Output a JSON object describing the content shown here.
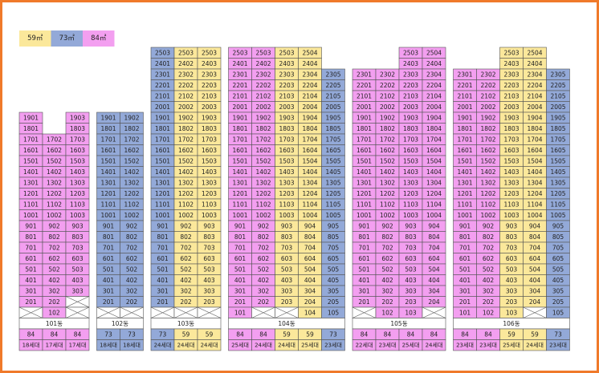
{
  "legend": [
    {
      "label": "59㎡",
      "color": "#fbe89b"
    },
    {
      "label": "73㎡",
      "color": "#93a9d8"
    },
    {
      "label": "84㎡",
      "color": "#f39ff0"
    }
  ],
  "buildings": [
    {
      "name": "101동",
      "lines": [
        {
          "type": "84",
          "color": "#f39ff0",
          "households": "18세대"
        },
        {
          "type": "84",
          "color": "#f39ff0",
          "households": "17세대"
        },
        {
          "type": "84",
          "color": "#f39ff0",
          "households": "17세대"
        }
      ],
      "rows": [
        [
          "1901",
          null,
          "1903"
        ],
        [
          "1801",
          null,
          "1803"
        ],
        [
          "1701",
          "1702",
          "1703"
        ],
        [
          "1601",
          "1602",
          "1603"
        ],
        [
          "1501",
          "1502",
          "1503"
        ],
        [
          "1401",
          "1402",
          "1403"
        ],
        [
          "1301",
          "1302",
          "1303"
        ],
        [
          "1201",
          "1202",
          "1203"
        ],
        [
          "1101",
          "1102",
          "1103"
        ],
        [
          "1001",
          "1002",
          "1003"
        ],
        [
          "901",
          "902",
          "903"
        ],
        [
          "801",
          "802",
          "803"
        ],
        [
          "701",
          "702",
          "703"
        ],
        [
          "601",
          "602",
          "603"
        ],
        [
          "501",
          "502",
          "503"
        ],
        [
          "401",
          "402",
          "403"
        ],
        [
          "301",
          "302",
          "303"
        ],
        [
          "201",
          "202",
          null
        ],
        [
          null,
          "102",
          null
        ]
      ]
    },
    {
      "name": "102동",
      "lines": [
        {
          "type": "73",
          "color": "#93a9d8",
          "households": "18세대"
        },
        {
          "type": "73",
          "color": "#93a9d8",
          "households": "18세대"
        }
      ],
      "rows": [
        [
          "1901",
          "1902"
        ],
        [
          "1801",
          "1802"
        ],
        [
          "1701",
          "1702"
        ],
        [
          "1601",
          "1602"
        ],
        [
          "1501",
          "1502"
        ],
        [
          "1401",
          "1402"
        ],
        [
          "1301",
          "1302"
        ],
        [
          "1201",
          "1202"
        ],
        [
          "1101",
          "1102"
        ],
        [
          "1001",
          "1002"
        ],
        [
          "901",
          "902"
        ],
        [
          "801",
          "802"
        ],
        [
          "701",
          "702"
        ],
        [
          "601",
          "602"
        ],
        [
          "501",
          "502"
        ],
        [
          "401",
          "402"
        ],
        [
          "301",
          "302"
        ],
        [
          "201",
          "202"
        ],
        [
          null,
          null
        ]
      ]
    },
    {
      "name": "103동",
      "lines": [
        {
          "type": "73",
          "color": "#93a9d8",
          "households": "24세대"
        },
        {
          "type": "59",
          "color": "#fbe89b",
          "households": "24세대"
        },
        {
          "type": "59",
          "color": "#fbe89b",
          "households": "24세대"
        }
      ],
      "rows": [
        [
          "2503",
          "2503",
          "2503"
        ],
        [
          "2401",
          "2402",
          "2403"
        ],
        [
          "2301",
          "2302",
          "2303"
        ],
        [
          "2201",
          "2202",
          "2203"
        ],
        [
          "2101",
          "2102",
          "2103"
        ],
        [
          "2001",
          "2002",
          "2003"
        ],
        [
          "1901",
          "1902",
          "1903"
        ],
        [
          "1801",
          "1802",
          "1803"
        ],
        [
          "1701",
          "1702",
          "1703"
        ],
        [
          "1601",
          "1602",
          "1603"
        ],
        [
          "1501",
          "1502",
          "1503"
        ],
        [
          "1401",
          "1402",
          "1403"
        ],
        [
          "1301",
          "1302",
          "1303"
        ],
        [
          "1201",
          "1202",
          "1203"
        ],
        [
          "1101",
          "1102",
          "1103"
        ],
        [
          "1001",
          "1002",
          "1003"
        ],
        [
          "901",
          "902",
          "903"
        ],
        [
          "801",
          "802",
          "803"
        ],
        [
          "701",
          "702",
          "703"
        ],
        [
          "601",
          "602",
          "603"
        ],
        [
          "501",
          "502",
          "503"
        ],
        [
          "401",
          "402",
          "403"
        ],
        [
          "301",
          "302",
          "303"
        ],
        [
          "201",
          "202",
          "203"
        ],
        [
          null,
          null,
          null
        ]
      ]
    },
    {
      "name": "104동",
      "lines": [
        {
          "type": "84",
          "color": "#f39ff0",
          "households": "25세대"
        },
        {
          "type": "84",
          "color": "#f39ff0",
          "households": "24세대"
        },
        {
          "type": "59",
          "color": "#fbe89b",
          "households": "24세대"
        },
        {
          "type": "59",
          "color": "#fbe89b",
          "households": "25세대"
        },
        {
          "type": "73",
          "color": "#93a9d8",
          "households": "23세대"
        }
      ],
      "rows": [
        [
          "2503",
          "2503",
          "2503",
          "2504",
          null
        ],
        [
          "2401",
          "2402",
          "2403",
          "2404",
          null
        ],
        [
          "2301",
          "2302",
          "2303",
          "2304",
          "2305"
        ],
        [
          "2201",
          "2202",
          "2203",
          "2204",
          "2205"
        ],
        [
          "2101",
          "2102",
          "2103",
          "2104",
          "2105"
        ],
        [
          "2001",
          "2002",
          "2003",
          "2004",
          "2005"
        ],
        [
          "1901",
          "1902",
          "1903",
          "1904",
          "1905"
        ],
        [
          "1801",
          "1802",
          "1803",
          "1804",
          "1805"
        ],
        [
          "1701",
          "1702",
          "1703",
          "1704",
          "1705"
        ],
        [
          "1601",
          "1602",
          "1603",
          "1604",
          "1605"
        ],
        [
          "1501",
          "1502",
          "1503",
          "1504",
          "1505"
        ],
        [
          "1401",
          "1402",
          "1403",
          "1404",
          "1405"
        ],
        [
          "1301",
          "1302",
          "1303",
          "1304",
          "1305"
        ],
        [
          "1201",
          "1202",
          "1203",
          "1204",
          "1205"
        ],
        [
          "1101",
          "1102",
          "1103",
          "1104",
          "1105"
        ],
        [
          "1001",
          "1002",
          "1003",
          "1004",
          "1005"
        ],
        [
          "901",
          "902",
          "903",
          "904",
          "905"
        ],
        [
          "801",
          "802",
          "803",
          "804",
          "805"
        ],
        [
          "701",
          "702",
          "703",
          "704",
          "705"
        ],
        [
          "601",
          "602",
          "603",
          "604",
          "605"
        ],
        [
          "501",
          "502",
          "503",
          "504",
          "505"
        ],
        [
          "401",
          "402",
          "403",
          "404",
          "405"
        ],
        [
          "301",
          "302",
          "303",
          "304",
          "305"
        ],
        [
          "201",
          "202",
          "203",
          "204",
          "205"
        ],
        [
          "101",
          null,
          null,
          "104",
          "105"
        ]
      ]
    },
    {
      "name": "105동",
      "lines": [
        {
          "type": "84",
          "color": "#f39ff0",
          "households": "22세대"
        },
        {
          "type": "84",
          "color": "#f39ff0",
          "households": "23세대"
        },
        {
          "type": "84",
          "color": "#f39ff0",
          "households": "25세대"
        },
        {
          "type": "84",
          "color": "#f39ff0",
          "households": "24세대"
        }
      ],
      "rows": [
        [
          null,
          null,
          "2503",
          "2504"
        ],
        [
          null,
          null,
          "2403",
          "2404"
        ],
        [
          "2301",
          "2302",
          "2303",
          "2304"
        ],
        [
          "2201",
          "2202",
          "2203",
          "2204"
        ],
        [
          "2101",
          "2102",
          "2103",
          "2104"
        ],
        [
          "2001",
          "2002",
          "2003",
          "2004"
        ],
        [
          "1901",
          "1902",
          "1903",
          "1904"
        ],
        [
          "1801",
          "1802",
          "1803",
          "1804"
        ],
        [
          "1701",
          "1702",
          "1703",
          "1704"
        ],
        [
          "1601",
          "1602",
          "1603",
          "1604"
        ],
        [
          "1501",
          "1502",
          "1503",
          "1504"
        ],
        [
          "1401",
          "1402",
          "1403",
          "1404"
        ],
        [
          "1301",
          "1302",
          "1303",
          "1304"
        ],
        [
          "1201",
          "1202",
          "1203",
          "1204"
        ],
        [
          "1101",
          "1102",
          "1103",
          "1104"
        ],
        [
          "1001",
          "1002",
          "1003",
          "1004"
        ],
        [
          "901",
          "902",
          "903",
          "904"
        ],
        [
          "801",
          "802",
          "803",
          "804"
        ],
        [
          "701",
          "702",
          "703",
          "704"
        ],
        [
          "601",
          "602",
          "603",
          "604"
        ],
        [
          "501",
          "502",
          "503",
          "504"
        ],
        [
          "401",
          "402",
          "403",
          "404"
        ],
        [
          "301",
          "302",
          "303",
          "304"
        ],
        [
          "201",
          "202",
          "203",
          "204"
        ],
        [
          null,
          "102",
          "103",
          null
        ]
      ]
    },
    {
      "name": "106동",
      "lines": [
        {
          "type": "84",
          "color": "#f39ff0",
          "households": "23세대"
        },
        {
          "type": "84",
          "color": "#f39ff0",
          "households": "23세대"
        },
        {
          "type": "59",
          "color": "#fbe89b",
          "households": "25세대"
        },
        {
          "type": "59",
          "color": "#fbe89b",
          "households": "24세대"
        },
        {
          "type": "73",
          "color": "#93a9d8",
          "households": "23세대"
        }
      ],
      "rows": [
        [
          null,
          null,
          "2503",
          "2504",
          null
        ],
        [
          null,
          null,
          "2403",
          "2404",
          null
        ],
        [
          "2301",
          "2302",
          "2303",
          "2304",
          "2305"
        ],
        [
          "2201",
          "2202",
          "2203",
          "2204",
          "2205"
        ],
        [
          "2101",
          "2102",
          "2103",
          "2104",
          "2105"
        ],
        [
          "2001",
          "2002",
          "2003",
          "2004",
          "2005"
        ],
        [
          "1901",
          "1902",
          "1903",
          "1904",
          "1905"
        ],
        [
          "1801",
          "1802",
          "1803",
          "1804",
          "1805"
        ],
        [
          "1701",
          "1702",
          "1703",
          "1704",
          "1705"
        ],
        [
          "1601",
          "1602",
          "1603",
          "1604",
          "1605"
        ],
        [
          "1501",
          "1502",
          "1503",
          "1504",
          "1505"
        ],
        [
          "1401",
          "1402",
          "1403",
          "1404",
          "1405"
        ],
        [
          "1301",
          "1302",
          "1303",
          "1304",
          "1305"
        ],
        [
          "1201",
          "1202",
          "1203",
          "1204",
          "1205"
        ],
        [
          "1101",
          "1102",
          "1103",
          "1104",
          "1105"
        ],
        [
          "1001",
          "1002",
          "1003",
          "1004",
          "1005"
        ],
        [
          "901",
          "902",
          "903",
          "904",
          "905"
        ],
        [
          "801",
          "802",
          "803",
          "804",
          "805"
        ],
        [
          "701",
          "702",
          "703",
          "704",
          "705"
        ],
        [
          "601",
          "602",
          "603",
          "604",
          "605"
        ],
        [
          "501",
          "502",
          "503",
          "504",
          "505"
        ],
        [
          "401",
          "402",
          "403",
          "404",
          "405"
        ],
        [
          "301",
          "302",
          "303",
          "304",
          "305"
        ],
        [
          "201",
          "202",
          "203",
          "204",
          "205"
        ],
        [
          "101",
          "102",
          "103",
          null,
          "105"
        ]
      ]
    }
  ]
}
